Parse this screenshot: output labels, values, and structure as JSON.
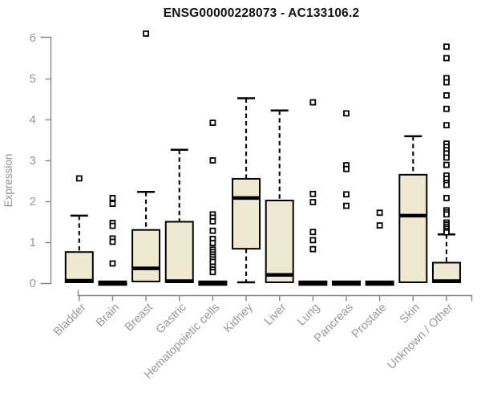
{
  "page": {
    "background": "#ffffff"
  },
  "chart_data": {
    "type": "boxplot",
    "title": "ENSG00000228073 - AC133106.2",
    "ylabel": "Expression",
    "xlabel": "",
    "ylim": [
      0,
      6
    ],
    "yticks": [
      0,
      1,
      2,
      3,
      4,
      5,
      6
    ],
    "grid": false,
    "legend": null,
    "box_fill": "#EFE9D1",
    "box_stroke": "#000000",
    "axis_color": "#888888",
    "tick_label_color": "#979797",
    "title_color": "#111111",
    "categories": [
      "Bladder",
      "Brain",
      "Breast",
      "Gastric",
      "Hematopoietic cells",
      "Kidney",
      "Liver",
      "Lung",
      "Pancreas",
      "Prostate",
      "Skin",
      "Unknown / Other"
    ],
    "series": [
      {
        "category": "Bladder",
        "collapsed": false,
        "whisker_low": null,
        "q1": 0.02,
        "median": 0.06,
        "q3": 0.76,
        "whisker_high": 1.65,
        "outliers": [
          2.56
        ]
      },
      {
        "category": "Brain",
        "collapsed": true,
        "whisker_low": null,
        "q1": 0.0,
        "median": 0.02,
        "q3": 0.04,
        "whisker_high": null,
        "outliers": [
          2.08,
          1.94,
          1.47,
          1.4,
          1.09,
          1.01,
          0.48
        ]
      },
      {
        "category": "Breast",
        "collapsed": false,
        "whisker_low": null,
        "q1": 0.04,
        "median": 0.36,
        "q3": 1.3,
        "whisker_high": 2.23,
        "outliers": [
          6.1
        ]
      },
      {
        "category": "Gastric",
        "collapsed": false,
        "whisker_low": null,
        "q1": 0.02,
        "median": 0.05,
        "q3": 1.5,
        "whisker_high": 3.26,
        "outliers": []
      },
      {
        "category": "Hematopoietic cells",
        "collapsed": true,
        "whisker_low": null,
        "q1": 0.0,
        "median": 0.02,
        "q3": 0.04,
        "whisker_high": null,
        "outliers": [
          3.92,
          3.0,
          1.68,
          1.6,
          1.51,
          1.28,
          1.08,
          0.98,
          0.82,
          0.76,
          0.7,
          0.64,
          0.58,
          0.52,
          0.4,
          0.33,
          0.27
        ]
      },
      {
        "category": "Kidney",
        "collapsed": false,
        "whisker_low": 0.02,
        "q1": 0.84,
        "median": 2.08,
        "q3": 2.55,
        "whisker_high": 4.52,
        "outliers": []
      },
      {
        "category": "Liver",
        "collapsed": false,
        "whisker_low": null,
        "q1": 0.02,
        "median": 0.2,
        "q3": 2.02,
        "whisker_high": 4.22,
        "outliers": []
      },
      {
        "category": "Lung",
        "collapsed": true,
        "whisker_low": null,
        "q1": 0.0,
        "median": 0.02,
        "q3": 0.04,
        "whisker_high": null,
        "outliers": [
          4.42,
          2.18,
          1.98,
          1.25,
          1.05,
          0.83
        ]
      },
      {
        "category": "Pancreas",
        "collapsed": true,
        "whisker_low": null,
        "q1": 0.0,
        "median": 0.02,
        "q3": 0.04,
        "whisker_high": null,
        "outliers": [
          4.15,
          2.88,
          2.79,
          2.17,
          1.89
        ]
      },
      {
        "category": "Prostate",
        "collapsed": true,
        "whisker_low": null,
        "q1": 0.0,
        "median": 0.02,
        "q3": 0.04,
        "whisker_high": null,
        "outliers": [
          1.72,
          1.41
        ]
      },
      {
        "category": "Skin",
        "collapsed": false,
        "whisker_low": null,
        "q1": 0.02,
        "median": 1.65,
        "q3": 2.65,
        "whisker_high": 3.59,
        "outliers": []
      },
      {
        "category": "Unknown / Other",
        "collapsed": false,
        "whisker_low": null,
        "q1": 0.02,
        "median": 0.05,
        "q3": 0.5,
        "whisker_high": 1.19,
        "outliers": [
          5.78,
          5.5,
          5.01,
          4.91,
          4.59,
          4.26,
          3.86,
          3.41,
          3.33,
          3.25,
          3.17,
          3.07,
          2.89,
          2.63,
          2.55,
          2.45,
          2.4,
          2.08,
          1.78,
          1.73,
          1.68,
          1.48,
          1.43,
          1.38,
          1.33,
          1.28,
          1.24
        ]
      }
    ]
  }
}
